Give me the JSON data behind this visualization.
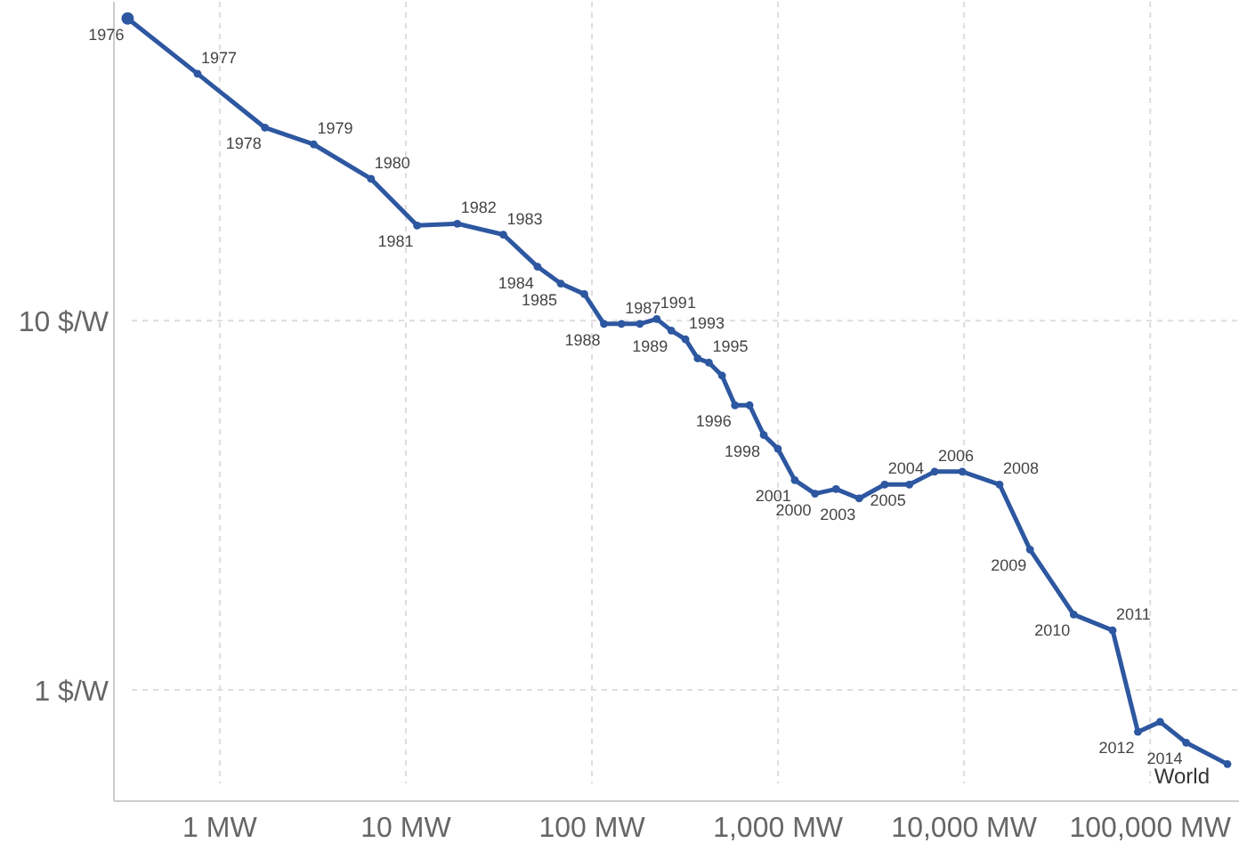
{
  "chart_data": {
    "type": "line",
    "log": "xy",
    "grid": true,
    "marker": "circle",
    "line_style": "solid",
    "xlim": [
      0.27,
      300000
    ],
    "ylim": [
      0.5,
      73
    ],
    "xticks": [
      {
        "value": 1,
        "label": "1 MW"
      },
      {
        "value": 10,
        "label": "10 MW"
      },
      {
        "value": 100,
        "label": "100 MW"
      },
      {
        "value": 1000,
        "label": "1,000 MW"
      },
      {
        "value": 10000,
        "label": "10,000 MW"
      },
      {
        "value": 100000,
        "label": "100,000 MW"
      }
    ],
    "yticks": [
      {
        "value": 1,
        "label": "1 $/W"
      },
      {
        "value": 10,
        "label": "10 $/W"
      }
    ],
    "series": [
      {
        "name": "World",
        "color": "#2d57a0",
        "x": [
          0.32,
          0.76,
          1.75,
          3.2,
          6.5,
          11.5,
          18.9,
          33.4,
          51,
          68,
          91,
          116,
          144,
          181,
          223,
          267,
          318,
          370,
          425,
          500,
          587,
          703,
          838,
          998,
          1230,
          1580,
          2050,
          2730,
          3740,
          5080,
          6940,
          9780,
          15500,
          22600,
          38800,
          62800,
          85900,
          113000,
          156000,
          260000
        ],
        "values": [
          65.8,
          46.6,
          33.3,
          30,
          24.2,
          18.1,
          18.3,
          17.1,
          14,
          12.6,
          11.8,
          9.8,
          9.8,
          9.8,
          10.1,
          9.4,
          8.9,
          7.9,
          7.7,
          7.1,
          5.9,
          5.9,
          4.9,
          4.5,
          3.7,
          3.4,
          3.5,
          3.3,
          3.6,
          3.6,
          3.9,
          3.9,
          3.6,
          2.4,
          1.6,
          1.45,
          0.77,
          0.82,
          0.72,
          0.63
        ]
      }
    ],
    "annotations": [
      {
        "text": "1976",
        "x": 0.32,
        "y": 65.8
      },
      {
        "text": "1977",
        "x": 0.76,
        "y": 46.6
      },
      {
        "text": "1978",
        "x": 1.75,
        "y": 33.3
      },
      {
        "text": "1979",
        "x": 3.2,
        "y": 30
      },
      {
        "text": "1980",
        "x": 6.5,
        "y": 24.2
      },
      {
        "text": "1981",
        "x": 11.5,
        "y": 18.1
      },
      {
        "text": "1982",
        "x": 18.9,
        "y": 18.3
      },
      {
        "text": "1983",
        "x": 33.4,
        "y": 17.1
      },
      {
        "text": "1984",
        "x": 51,
        "y": 14
      },
      {
        "text": "1985",
        "x": 68,
        "y": 12.6
      },
      {
        "text": "1987",
        "x": 144,
        "y": 9.8
      },
      {
        "text": "1988",
        "x": 116,
        "y": 9.8
      },
      {
        "text": "1989",
        "x": 267,
        "y": 9.4
      },
      {
        "text": "1991",
        "x": 223,
        "y": 10.1
      },
      {
        "text": "1993",
        "x": 318,
        "y": 8.9
      },
      {
        "text": "1995",
        "x": 425,
        "y": 7.7
      },
      {
        "text": "1996",
        "x": 587,
        "y": 5.9
      },
      {
        "text": "1998",
        "x": 838,
        "y": 4.9
      },
      {
        "text": "2000",
        "x": 1580,
        "y": 3.4
      },
      {
        "text": "2001",
        "x": 1230,
        "y": 3.7
      },
      {
        "text": "2003",
        "x": 2730,
        "y": 3.3
      },
      {
        "text": "2004",
        "x": 3740,
        "y": 3.6
      },
      {
        "text": "2005",
        "x": 5080,
        "y": 3.6
      },
      {
        "text": "2006",
        "x": 6940,
        "y": 3.9
      },
      {
        "text": "2008",
        "x": 15500,
        "y": 3.6
      },
      {
        "text": "2009",
        "x": 22600,
        "y": 2.4
      },
      {
        "text": "2010",
        "x": 38800,
        "y": 1.6
      },
      {
        "text": "2011",
        "x": 62800,
        "y": 1.45
      },
      {
        "text": "2012",
        "x": 85900,
        "y": 0.77
      },
      {
        "text": "2014",
        "x": 156000,
        "y": 0.72
      }
    ]
  }
}
